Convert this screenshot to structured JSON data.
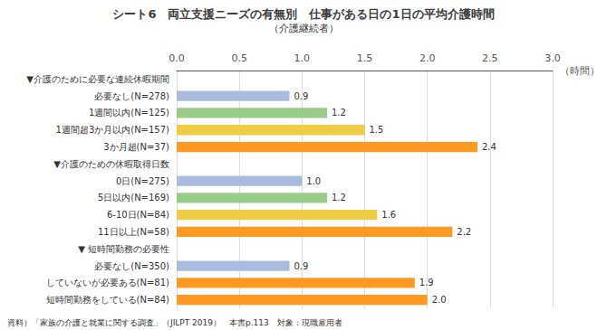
{
  "chart_data": {
    "type": "bar",
    "orientation": "horizontal",
    "title": "シート6　両立支援ニーズの有無別　仕事がある日の1日の平均介護時間",
    "subtitle": "（介護継続者）",
    "xlabel": "（時間）",
    "annotations": [
      "資料）「家族の介護と就業に関する調査」（JILPT 2019）　本書p.113　対象：現職雇用者"
    ],
    "categories": [
      "▼介護のために必要な連続休暇期間",
      "　必要なし(N=278)",
      "　1週間以内(N=125)",
      "　1週間超3か月以内(N=157)",
      "　3か月超(N=37)",
      "▼介護のための休暇取得日数",
      "　0日(N=275)",
      "　5日以内(N=169)",
      "　6-10日(N=84)",
      "　11日以上(N=58)",
      "▼ 短時間勤務の必要性",
      "　必要なし(N=350)",
      "　していないが必要ある(N=81)",
      "　短時間勤務をしている(N=84)"
    ],
    "values": [
      null,
      0.9,
      1.2,
      1.5,
      2.4,
      null,
      1.0,
      1.2,
      1.6,
      2.2,
      null,
      0.9,
      1.9,
      2.0
    ],
    "value_labels": [
      null,
      "0.9",
      "1.2",
      "1.5",
      "2.4",
      null,
      "1.0",
      "1.2",
      "1.6",
      "2.2",
      null,
      "0.9",
      "1.9",
      "2.0"
    ],
    "colors": [
      null,
      "#aabbdd",
      "#99cc88",
      "#eecc44",
      "#ff9922",
      null,
      "#aabbdd",
      "#99cc88",
      "#eecc44",
      "#ff9922",
      null,
      "#aabbdd",
      "#ff9922",
      "#ff9922"
    ],
    "data_labels": true,
    "xlim": [
      0,
      3.0
    ],
    "xticks": [
      {
        "value": 0,
        "label": "0.0"
      },
      0.5,
      {
        "value": 1,
        "label": "1.0"
      },
      1.5,
      {
        "value": 2,
        "label": "2.0"
      },
      2.5,
      {
        "value": 3,
        "label": "3.0"
      }
    ],
    "grid": true
  }
}
